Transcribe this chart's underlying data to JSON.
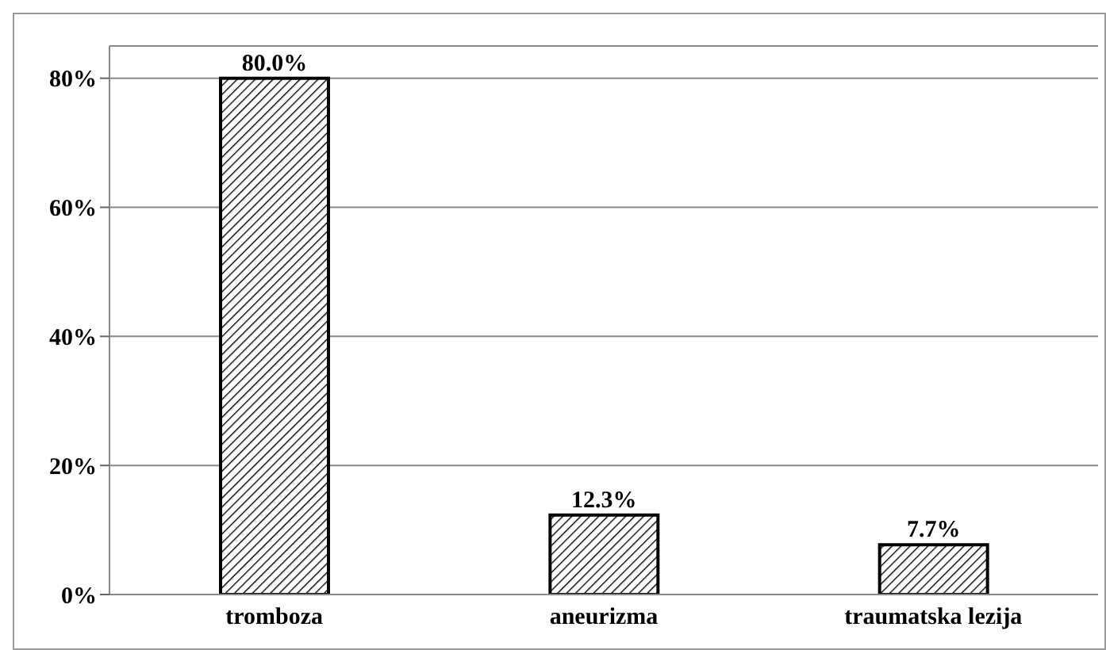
{
  "chart_data": {
    "type": "bar",
    "categories": [
      "tromboza",
      "aneurizma",
      "traumatska lezija"
    ],
    "values": [
      80.0,
      12.3,
      7.7
    ],
    "value_labels": [
      "80.0%",
      "12.3%",
      "7.7%"
    ],
    "color": "#000000",
    "ylim": [
      0,
      85
    ],
    "yticks": [
      {
        "value": 0,
        "label": "0%"
      },
      {
        "value": 20,
        "label": "20%"
      },
      {
        "value": 40,
        "label": "40%"
      },
      {
        "value": 60,
        "label": "60%"
      },
      {
        "value": 80,
        "label": "80%"
      }
    ],
    "grid": "y"
  }
}
